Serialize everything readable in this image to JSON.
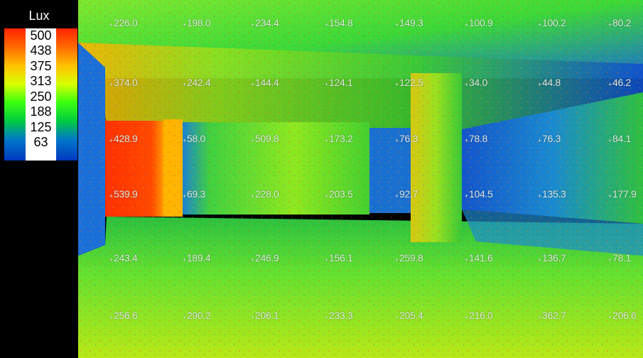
{
  "legend": {
    "title": "Lux",
    "labels": [
      "500",
      "438",
      "375",
      "313",
      "250",
      "188",
      "125",
      "63"
    ]
  },
  "colors": {
    "high": "#ff2200",
    "mid_high": "#ffc000",
    "mid": "#3cff10",
    "low": "#0038c0",
    "background": "#000000"
  },
  "illuminance_grid": [
    [
      "226.0",
      "198.0",
      "234.4",
      "154.8",
      "149.3",
      "100.9",
      "100.2",
      "80.2"
    ],
    [
      "374.0",
      "242.4",
      "144.4",
      "124.1",
      "122.5",
      "34.0",
      "44.8",
      "46.2"
    ],
    [
      "428.9",
      "58.0",
      "509.8",
      "173.2",
      "76.3",
      "78.8",
      "76.3",
      "84.1"
    ],
    [
      "539.9",
      "69.3",
      "228.0",
      "203.5",
      "92.7",
      "104.5",
      "135.3",
      "177.9"
    ],
    [
      "243.4",
      "189.4",
      "246.9",
      "156.1",
      "259.8",
      "141.6",
      "136.7",
      "78.1"
    ],
    [
      "256.6",
      "290.2",
      "206.1",
      "233.3",
      "205.4",
      "216.0",
      "362.7",
      "206.6"
    ]
  ]
}
